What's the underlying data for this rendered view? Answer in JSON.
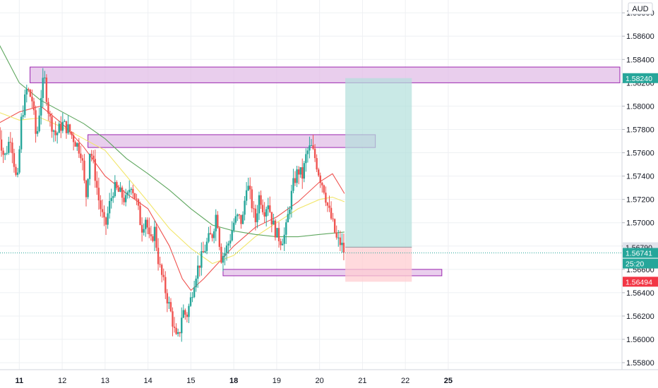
{
  "chart_data": {
    "type": "candlestick",
    "currency": "AUD",
    "y_axis": {
      "ylim": [
        1.5574,
        1.5891
      ],
      "ticks": [
        "1.58800",
        "1.58600",
        "1.58400",
        "1.58200",
        "1.58000",
        "1.57800",
        "1.57600",
        "1.57400",
        "1.57200",
        "1.57000",
        "1.56800",
        "1.56600",
        "1.56400",
        "1.56200",
        "1.56000",
        "1.55800"
      ],
      "tick_values": [
        1.588,
        1.586,
        1.584,
        1.582,
        1.58,
        1.578,
        1.576,
        1.574,
        1.572,
        1.57,
        1.568,
        1.566,
        1.564,
        1.562,
        1.56,
        1.558
      ]
    },
    "x_axis": {
      "xlim": [
        10.55,
        25.05
      ],
      "ticks": [
        {
          "label": "11",
          "x": 11,
          "bold": true
        },
        {
          "label": "12",
          "x": 12,
          "bold": false
        },
        {
          "label": "13",
          "x": 13,
          "bold": false
        },
        {
          "label": "14",
          "x": 14,
          "bold": false
        },
        {
          "label": "15",
          "x": 15,
          "bold": false
        },
        {
          "label": "18",
          "x": 16,
          "bold": true
        },
        {
          "label": "19",
          "x": 17,
          "bold": false
        },
        {
          "label": "20",
          "x": 18,
          "bold": false
        },
        {
          "label": "21",
          "x": 19,
          "bold": false
        },
        {
          "label": "22",
          "x": 20,
          "bold": false
        },
        {
          "label": "25",
          "x": 21,
          "bold": true
        }
      ]
    },
    "price_path": [
      [
        10.5,
        1.5782
      ],
      [
        10.65,
        1.5755
      ],
      [
        10.8,
        1.5775
      ],
      [
        10.95,
        1.573
      ],
      [
        11.05,
        1.579
      ],
      [
        11.18,
        1.5815
      ],
      [
        11.3,
        1.5805
      ],
      [
        11.4,
        1.577
      ],
      [
        11.5,
        1.5808
      ],
      [
        11.58,
        1.5825
      ],
      [
        11.7,
        1.579
      ],
      [
        11.85,
        1.5775
      ],
      [
        12.0,
        1.5785
      ],
      [
        12.15,
        1.578
      ],
      [
        12.3,
        1.577
      ],
      [
        12.45,
        1.576
      ],
      [
        12.55,
        1.572
      ],
      [
        12.65,
        1.5765
      ],
      [
        12.75,
        1.5745
      ],
      [
        12.85,
        1.572
      ],
      [
        13.0,
        1.5695
      ],
      [
        13.1,
        1.5715
      ],
      [
        13.2,
        1.573
      ],
      [
        13.35,
        1.5725
      ],
      [
        13.5,
        1.5718
      ],
      [
        13.6,
        1.5735
      ],
      [
        13.75,
        1.5715
      ],
      [
        13.85,
        1.5695
      ],
      [
        13.95,
        1.5705
      ],
      [
        14.05,
        1.568
      ],
      [
        14.15,
        1.5695
      ],
      [
        14.25,
        1.5665
      ],
      [
        14.35,
        1.565
      ],
      [
        14.45,
        1.5635
      ],
      [
        14.55,
        1.562
      ],
      [
        14.65,
        1.56
      ],
      [
        14.72,
        1.5602
      ],
      [
        14.8,
        1.5625
      ],
      [
        14.9,
        1.562
      ],
      [
        15.0,
        1.5635
      ],
      [
        15.1,
        1.5655
      ],
      [
        15.2,
        1.5665
      ],
      [
        15.3,
        1.5675
      ],
      [
        15.4,
        1.5685
      ],
      [
        15.5,
        1.569
      ],
      [
        15.6,
        1.571
      ],
      [
        15.65,
        1.569
      ],
      [
        15.7,
        1.567
      ],
      [
        15.8,
        1.5675
      ],
      [
        15.9,
        1.5685
      ],
      [
        16.0,
        1.57
      ],
      [
        16.1,
        1.5705
      ],
      [
        16.2,
        1.57
      ],
      [
        16.3,
        1.5735
      ],
      [
        16.4,
        1.572
      ],
      [
        16.5,
        1.57
      ],
      [
        16.6,
        1.5725
      ],
      [
        16.7,
        1.571
      ],
      [
        16.8,
        1.5718
      ],
      [
        16.9,
        1.57
      ],
      [
        17.0,
        1.569
      ],
      [
        17.1,
        1.5685
      ],
      [
        17.2,
        1.569
      ],
      [
        17.3,
        1.5715
      ],
      [
        17.4,
        1.5735
      ],
      [
        17.5,
        1.5745
      ],
      [
        17.6,
        1.574
      ],
      [
        17.7,
        1.576
      ],
      [
        17.8,
        1.5765
      ],
      [
        17.9,
        1.5755
      ],
      [
        18.0,
        1.574
      ],
      [
        18.1,
        1.573
      ],
      [
        18.2,
        1.5712
      ],
      [
        18.3,
        1.57
      ],
      [
        18.4,
        1.5685
      ],
      [
        18.5,
        1.5682
      ],
      [
        18.58,
        1.5674
      ]
    ],
    "moving_averages": [
      {
        "color": "#ef5350",
        "values": [
          [
            10.5,
            1.5785
          ],
          [
            11.0,
            1.5795
          ],
          [
            11.5,
            1.58
          ],
          [
            12.0,
            1.5785
          ],
          [
            12.5,
            1.5765
          ],
          [
            13.0,
            1.574
          ],
          [
            13.5,
            1.5725
          ],
          [
            14.0,
            1.5712
          ],
          [
            14.5,
            1.568
          ],
          [
            14.8,
            1.5652
          ],
          [
            15.0,
            1.5642
          ],
          [
            15.3,
            1.5652
          ],
          [
            15.7,
            1.5668
          ],
          [
            16.0,
            1.568
          ],
          [
            16.5,
            1.5696
          ],
          [
            17.0,
            1.5705
          ],
          [
            17.5,
            1.5718
          ],
          [
            18.0,
            1.5735
          ],
          [
            18.3,
            1.5742
          ],
          [
            18.5,
            1.573
          ],
          [
            18.58,
            1.5725
          ]
        ]
      },
      {
        "color": "#f2e66b",
        "values": [
          [
            10.5,
            1.5795
          ],
          [
            11.0,
            1.5788
          ],
          [
            11.5,
            1.579
          ],
          [
            12.0,
            1.5782
          ],
          [
            12.5,
            1.5772
          ],
          [
            13.0,
            1.5762
          ],
          [
            13.5,
            1.574
          ],
          [
            14.0,
            1.5718
          ],
          [
            14.5,
            1.5695
          ],
          [
            15.0,
            1.5678
          ],
          [
            15.5,
            1.5665
          ],
          [
            16.0,
            1.5672
          ],
          [
            16.5,
            1.5688
          ],
          [
            17.0,
            1.57
          ],
          [
            17.5,
            1.5712
          ],
          [
            18.0,
            1.572
          ],
          [
            18.3,
            1.5722
          ],
          [
            18.58,
            1.5718
          ]
        ]
      },
      {
        "color": "#5fa75f",
        "values": [
          [
            10.5,
            1.5855
          ],
          [
            11.0,
            1.582
          ],
          [
            11.5,
            1.5805
          ],
          [
            12.0,
            1.5795
          ],
          [
            12.5,
            1.5785
          ],
          [
            13.0,
            1.5772
          ],
          [
            13.5,
            1.5755
          ],
          [
            14.0,
            1.5742
          ],
          [
            14.5,
            1.5728
          ],
          [
            15.0,
            1.5712
          ],
          [
            15.5,
            1.5698
          ],
          [
            16.0,
            1.5693
          ],
          [
            16.5,
            1.569
          ],
          [
            17.0,
            1.5688
          ],
          [
            17.5,
            1.5688
          ],
          [
            18.0,
            1.569
          ],
          [
            18.58,
            1.5692
          ]
        ]
      }
    ],
    "zones": [
      {
        "x1": 11.25,
        "x2": 25.0,
        "y1": 1.58335,
        "y2": 1.582
      },
      {
        "x1": 12.6,
        "x2": 19.3,
        "y1": 1.57755,
        "y2": 1.57645
      },
      {
        "x1": 15.75,
        "x2": 20.85,
        "y1": 1.566,
        "y2": 1.56545
      }
    ],
    "position": {
      "x1": 18.6,
      "x2": 20.15,
      "entry": 1.5679,
      "target": 1.5824,
      "stop": 1.56494
    },
    "current_price": 1.56741,
    "price_tags": [
      {
        "label": "1.58240",
        "value": 1.5824,
        "bg": "#26a69a",
        "fg": "#ffffff"
      },
      {
        "label": "1.56790",
        "value": 1.5679,
        "bg": "#e0e3eb",
        "fg": "#131722"
      },
      {
        "label": "1.56741",
        "value": 1.56741,
        "bg": "#26a69a",
        "fg": "#ffffff"
      },
      {
        "label": "25:20",
        "value": 1.5665,
        "bg": "#26a69a",
        "fg": "#ffffff"
      },
      {
        "label": "1.56494",
        "value": 1.56494,
        "bg": "#f23645",
        "fg": "#ffffff"
      }
    ],
    "colors": {
      "up": "#26a69a",
      "down": "#ef5350",
      "zone_fill": "#e1bee7",
      "zone_border": "#9c27b0",
      "target_fill": "#b2dfdb",
      "stop_fill": "#ffcdd2",
      "grid": "#eef0f3"
    }
  }
}
